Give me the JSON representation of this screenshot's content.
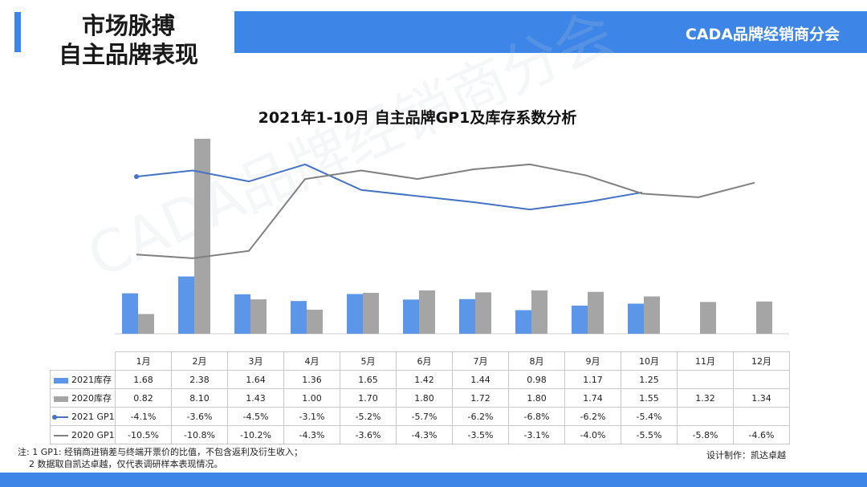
{
  "header": {
    "title_line1": "市场脉搏",
    "title_line2": "自主品牌表现",
    "brand": "CADA品牌经销商分会"
  },
  "colors": {
    "accent": "#3d85e6",
    "series_2021": "#5b96e8",
    "series_2020": "#a5a5a5",
    "line_2021": "#4472c4",
    "line_2020": "#808080"
  },
  "watermark": "CADA品牌经销商分会",
  "chart_data": {
    "type": "bar",
    "title": "2021年1-10月 自主品牌GP1及库存系数分析",
    "categories": [
      "1月",
      "2月",
      "3月",
      "4月",
      "5月",
      "6月",
      "7月",
      "8月",
      "9月",
      "10月",
      "11月",
      "12月"
    ],
    "series": [
      {
        "name": "2021库存",
        "kind": "bar",
        "values": [
          1.68,
          2.38,
          1.64,
          1.36,
          1.65,
          1.42,
          1.44,
          0.98,
          1.17,
          1.25,
          null,
          null
        ],
        "labels": [
          "1.68",
          "2.38",
          "1.64",
          "1.36",
          "1.65",
          "1.42",
          "1.44",
          "0.98",
          "1.17",
          "1.25",
          "",
          ""
        ]
      },
      {
        "name": "2020库存",
        "kind": "bar",
        "values": [
          0.82,
          8.1,
          1.43,
          1.0,
          1.7,
          1.8,
          1.72,
          1.8,
          1.74,
          1.55,
          1.32,
          1.34
        ],
        "labels": [
          "0.82",
          "8.10",
          "1.43",
          "1.00",
          "1.70",
          "1.80",
          "1.72",
          "1.80",
          "1.74",
          "1.55",
          "1.32",
          "1.34"
        ]
      },
      {
        "name": "2021 GP1",
        "kind": "line",
        "values": [
          -4.1,
          -3.6,
          -4.5,
          -3.1,
          -5.2,
          -5.7,
          -6.2,
          -6.8,
          -6.2,
          -5.4,
          null,
          null
        ],
        "labels": [
          "-4.1%",
          "-3.6%",
          "-4.5%",
          "-3.1%",
          "-5.2%",
          "-5.7%",
          "-6.2%",
          "-6.8%",
          "-6.2%",
          "-5.4%",
          "",
          ""
        ]
      },
      {
        "name": "2020 GP1",
        "kind": "line",
        "values": [
          -10.5,
          -10.8,
          -10.2,
          -4.3,
          -3.6,
          -4.3,
          -3.5,
          -3.1,
          -4.0,
          -5.5,
          -5.8,
          -4.6
        ],
        "labels": [
          "-10.5%",
          "-10.8%",
          "-10.2%",
          "-4.3%",
          "-3.6%",
          "-4.3%",
          "-3.5%",
          "-3.1%",
          "-4.0%",
          "-5.5%",
          "-5.8%",
          "-4.6%"
        ]
      }
    ],
    "ylim_bars": [
      0,
      8.1
    ],
    "ylim_lines": [
      -17,
      -1
    ],
    "grid": false,
    "legend": "table-left"
  },
  "notes": {
    "line1": "注: 1 GP1: 经销商进销差与终端开票价的比值，不包含返利及衍生收入；",
    "line2": "2 数据取自凯达卓越，仅代表调研样本表现情况。",
    "credit": "设计制作：凯达卓越"
  }
}
